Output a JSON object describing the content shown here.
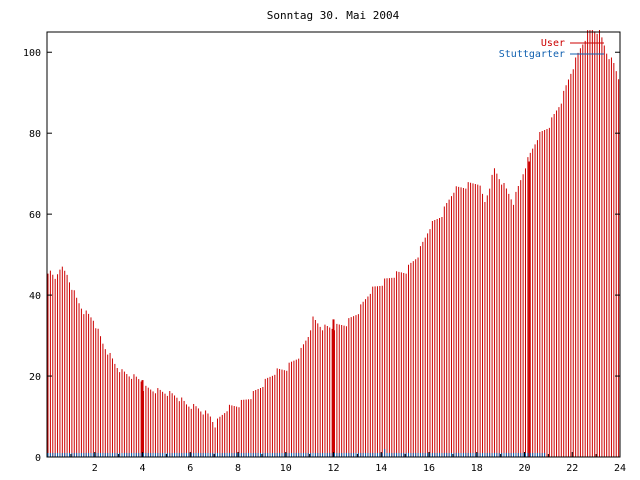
{
  "chart_data": {
    "type": "bar",
    "title": "Sonntag 30. Mai 2004",
    "xlabel": "",
    "ylabel": "",
    "xlim": [
      0,
      24
    ],
    "ylim": [
      0,
      105
    ],
    "x_ticks": [
      2,
      4,
      6,
      8,
      10,
      12,
      14,
      16,
      18,
      20,
      22,
      24
    ],
    "x_tick_labels": [
      "2",
      "4",
      "6",
      "8",
      "10",
      "12",
      "14",
      "16",
      "18",
      "20",
      "22",
      "24"
    ],
    "y_ticks": [
      0,
      20,
      40,
      60,
      80,
      100
    ],
    "y_tick_labels": [
      "0",
      "20",
      "40",
      "60",
      "80",
      "100"
    ],
    "grid": false,
    "legend_position": "top-right",
    "colors": {
      "user": "#cc0000",
      "stuttgarter": "#1060b0",
      "axis": "#000000"
    },
    "series": [
      {
        "name": "User",
        "color": "#cc0000",
        "x_step": 0.1,
        "x_start": 0,
        "anchors": [
          [
            0,
            46
          ],
          [
            0.3,
            44
          ],
          [
            0.5,
            47
          ],
          [
            0.8,
            45
          ],
          [
            1.2,
            39
          ],
          [
            1.5,
            36
          ],
          [
            1.9,
            34
          ],
          [
            2.3,
            28
          ],
          [
            2.8,
            23
          ],
          [
            3.1,
            21
          ],
          [
            3.5,
            20
          ],
          [
            3.9,
            19
          ],
          [
            4.0,
            17
          ],
          [
            4.9,
            16
          ],
          [
            5.4,
            15
          ],
          [
            5.8,
            13
          ],
          [
            6.3,
            12
          ],
          [
            6.8,
            10
          ],
          [
            7.0,
            8
          ],
          [
            7.5,
            12
          ],
          [
            8.0,
            13
          ],
          [
            8.5,
            15
          ],
          [
            9.0,
            18
          ],
          [
            9.5,
            21
          ],
          [
            10.0,
            22
          ],
          [
            10.5,
            25
          ],
          [
            10.9,
            30
          ],
          [
            11.1,
            34
          ],
          [
            11.5,
            32
          ],
          [
            12.0,
            32
          ],
          [
            12.5,
            33
          ],
          [
            13.0,
            36
          ],
          [
            13.5,
            41
          ],
          [
            14.0,
            43
          ],
          [
            14.5,
            45
          ],
          [
            15.0,
            46
          ],
          [
            15.5,
            50
          ],
          [
            16.0,
            57
          ],
          [
            16.5,
            60
          ],
          [
            17.0,
            66
          ],
          [
            17.5,
            67
          ],
          [
            18.0,
            68
          ],
          [
            18.3,
            63
          ],
          [
            18.7,
            71
          ],
          [
            19.0,
            68
          ],
          [
            19.5,
            63
          ],
          [
            20.0,
            72
          ],
          [
            20.5,
            79
          ],
          [
            21.0,
            82
          ],
          [
            21.5,
            88
          ],
          [
            21.9,
            95
          ],
          [
            22.3,
            101
          ],
          [
            22.7,
            106
          ],
          [
            23.1,
            105
          ],
          [
            23.4,
            100
          ],
          [
            23.7,
            97
          ],
          [
            24.0,
            92
          ]
        ],
        "spikes": [
          [
            4.0,
            19
          ],
          [
            12.0,
            34
          ],
          [
            20.2,
            73
          ]
        ]
      },
      {
        "name": "Stuttgarter",
        "color": "#1060b0",
        "x_step": 0.1,
        "x_start": 0,
        "anchors": [
          [
            0,
            1
          ],
          [
            14.0,
            1
          ],
          [
            14.1,
            2
          ],
          [
            14.2,
            1
          ],
          [
            20.8,
            1
          ],
          [
            20.9,
            0
          ],
          [
            24.0,
            0
          ]
        ],
        "spikes": []
      }
    ]
  }
}
